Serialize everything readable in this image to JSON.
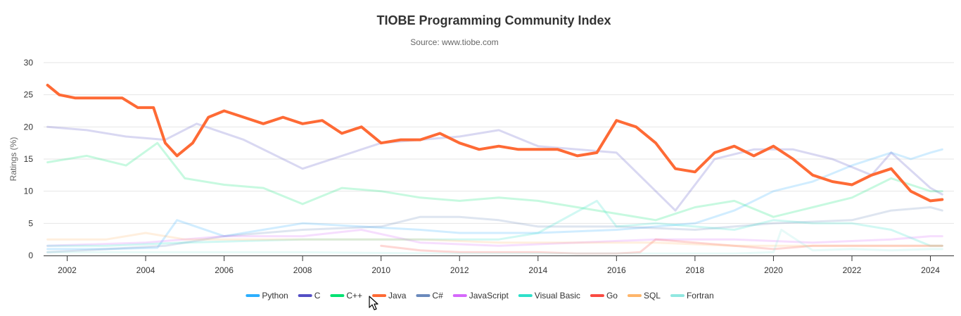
{
  "chart_data": {
    "type": "line",
    "title": "TIOBE Programming Community Index",
    "subtitle": "Source: www.tiobe.com",
    "ylabel": "Ratings (%)",
    "xlabel": "",
    "xlim": [
      2001.4,
      2024.6
    ],
    "ylim": [
      0,
      30
    ],
    "x_ticks": [
      "2002",
      "2004",
      "2006",
      "2008",
      "2010",
      "2012",
      "2014",
      "2016",
      "2018",
      "2020",
      "2022",
      "2024"
    ],
    "y_ticks": [
      "0",
      "5",
      "10",
      "15",
      "20",
      "25",
      "30"
    ],
    "grid": "horizontal",
    "legend_position": "bottom",
    "highlighted_series": "Java",
    "series": [
      {
        "name": "Python",
        "color": "#2caffe",
        "x": [
          2001.5,
          2003,
          2004.3,
          2004.8,
          2006,
          2008,
          2009.5,
          2011,
          2012,
          2014,
          2016,
          2018,
          2019,
          2020,
          2021,
          2022,
          2023,
          2023.5,
          2024,
          2024.3
        ],
        "y": [
          1.0,
          1.0,
          1.2,
          5.5,
          3.0,
          5.0,
          4.5,
          4.0,
          3.5,
          3.5,
          4.0,
          5.0,
          7.0,
          10.0,
          11.5,
          14.0,
          16.0,
          15.0,
          16.0,
          16.5
        ]
      },
      {
        "name": "C",
        "color": "#544fc5",
        "x": [
          2001.5,
          2002.5,
          2003.5,
          2004.5,
          2005.3,
          2006.5,
          2008,
          2010,
          2011,
          2012,
          2013,
          2014,
          2015,
          2016,
          2017.5,
          2018.5,
          2019.5,
          2020.5,
          2021.5,
          2022.5,
          2023,
          2024,
          2024.3
        ],
        "y": [
          20.0,
          19.5,
          18.5,
          18.0,
          20.5,
          18.0,
          13.5,
          17.5,
          18.0,
          18.5,
          19.5,
          17.0,
          16.5,
          16.0,
          7.0,
          15.0,
          16.5,
          16.5,
          15.0,
          12.5,
          16.0,
          10.5,
          9.5
        ]
      },
      {
        "name": "C++",
        "color": "#00e272",
        "x": [
          2001.5,
          2002.5,
          2003.5,
          2004.3,
          2005,
          2006,
          2007,
          2008,
          2009,
          2010,
          2011,
          2012,
          2013,
          2014,
          2015,
          2016,
          2017,
          2018,
          2019,
          2020,
          2021,
          2022,
          2023,
          2024,
          2024.3
        ],
        "y": [
          14.5,
          15.5,
          14.0,
          17.5,
          12.0,
          11.0,
          10.5,
          8.0,
          10.5,
          10.0,
          9.0,
          8.5,
          9.0,
          8.5,
          7.5,
          6.5,
          5.5,
          7.5,
          8.5,
          6.0,
          7.5,
          9.0,
          12.0,
          10.0,
          10.0
        ]
      },
      {
        "name": "Java",
        "color": "#fe6a35",
        "x": [
          2001.5,
          2001.8,
          2002.2,
          2002.6,
          2003,
          2003.4,
          2003.8,
          2004.2,
          2004.5,
          2004.8,
          2005.2,
          2005.6,
          2006,
          2006.5,
          2007,
          2007.5,
          2008,
          2008.5,
          2009,
          2009.5,
          2010,
          2010.5,
          2011,
          2011.5,
          2012,
          2012.5,
          2013,
          2013.5,
          2014,
          2014.5,
          2015,
          2015.5,
          2016,
          2016.5,
          2017,
          2017.5,
          2018,
          2018.5,
          2019,
          2019.5,
          2020,
          2020.5,
          2021,
          2021.5,
          2022,
          2022.5,
          2023,
          2023.5,
          2024,
          2024.3
        ],
        "y": [
          26.5,
          25.0,
          24.5,
          24.5,
          24.5,
          24.5,
          23.0,
          23.0,
          17.5,
          15.5,
          17.5,
          21.5,
          22.5,
          21.5,
          20.5,
          21.5,
          20.5,
          21.0,
          19.0,
          20.0,
          17.5,
          18.0,
          18.0,
          19.0,
          17.5,
          16.5,
          17.0,
          16.5,
          16.5,
          16.5,
          15.5,
          16.0,
          21.0,
          20.0,
          17.5,
          13.5,
          13.0,
          16.0,
          17.0,
          15.5,
          17.0,
          15.0,
          12.5,
          11.5,
          11.0,
          12.5,
          13.5,
          10.0,
          8.5,
          8.7
        ]
      },
      {
        "name": "C#",
        "color": "#6b8abc",
        "x": [
          2001.5,
          2003,
          2004.5,
          2006,
          2008,
          2010,
          2011,
          2012,
          2013,
          2014,
          2016,
          2018,
          2020,
          2022,
          2023,
          2024,
          2024.3
        ],
        "y": [
          0.5,
          1.0,
          1.5,
          3.0,
          4.0,
          4.5,
          6.0,
          6.0,
          5.5,
          4.5,
          4.5,
          4.0,
          5.0,
          5.5,
          7.0,
          7.5,
          7.0
        ]
      },
      {
        "name": "JavaScript",
        "color": "#d568fb",
        "x": [
          2001.5,
          2004,
          2006,
          2008,
          2009.5,
          2011,
          2013,
          2015,
          2017,
          2019,
          2021,
          2023,
          2024,
          2024.3
        ],
        "y": [
          1.5,
          2.0,
          3.0,
          3.0,
          4.0,
          2.0,
          1.5,
          2.0,
          2.5,
          2.5,
          2.0,
          2.5,
          3.0,
          3.0
        ]
      },
      {
        "name": "Visual Basic",
        "color": "#2ee0ca",
        "x": [
          2001.5,
          2003,
          2005,
          2008,
          2010,
          2013,
          2014,
          2015.5,
          2016,
          2017,
          2018,
          2019,
          2020,
          2021,
          2022,
          2023,
          2024,
          2024.3
        ],
        "y": [
          1.5,
          1.5,
          2.0,
          2.5,
          2.5,
          2.5,
          3.5,
          8.5,
          4.5,
          5.0,
          4.5,
          4.0,
          5.5,
          5.0,
          5.0,
          4.0,
          1.5,
          1.5
        ]
      },
      {
        "name": "Go",
        "color": "#fa4b42",
        "x": [
          2010,
          2011,
          2012,
          2013,
          2014,
          2015,
          2016,
          2016.6,
          2017,
          2018,
          2019,
          2020,
          2021,
          2022,
          2023,
          2024,
          2024.3
        ],
        "y": [
          1.5,
          0.8,
          0.5,
          0.5,
          0.5,
          0.3,
          0.3,
          0.5,
          2.5,
          2.0,
          1.5,
          1.0,
          1.5,
          1.5,
          1.5,
          1.5,
          1.5
        ]
      },
      {
        "name": "SQL",
        "color": "#feb56a",
        "x": [
          2001.5,
          2003,
          2004,
          2005,
          2008,
          2011,
          2013,
          2015,
          2017,
          2019,
          2021,
          2023,
          2024,
          2024.3
        ],
        "y": [
          2.5,
          2.5,
          3.5,
          2.5,
          2.5,
          2.5,
          2.0,
          2.0,
          2.0,
          1.5,
          1.5,
          1.5,
          1.5,
          1.5
        ]
      },
      {
        "name": "Fortran",
        "color": "#91e8e1",
        "x": [
          2001.5,
          2004,
          2008,
          2012,
          2016,
          2019,
          2020,
          2020.2,
          2021,
          2022,
          2023,
          2024,
          2024.3
        ],
        "y": [
          0.5,
          0.5,
          0.5,
          0.3,
          0.3,
          0.3,
          0.5,
          4.0,
          0.8,
          1.0,
          0.8,
          1.0,
          1.0
        ]
      }
    ]
  }
}
